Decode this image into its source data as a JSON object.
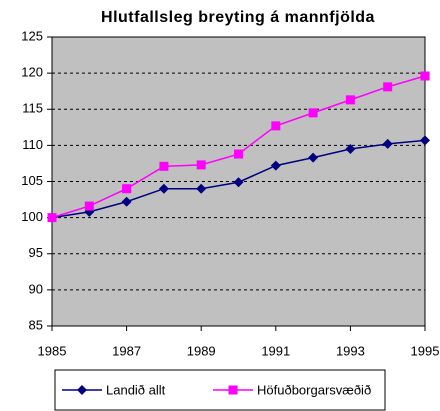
{
  "chart_data": {
    "type": "line",
    "title": "Hlutfallsleg breyting á mannfjölda",
    "x": [
      1985,
      1986,
      1987,
      1988,
      1989,
      1990,
      1991,
      1992,
      1993,
      1994,
      1995
    ],
    "xlim": [
      1985,
      1995
    ],
    "xticks": [
      1985,
      1987,
      1989,
      1991,
      1993,
      1995
    ],
    "ylim": [
      85,
      125
    ],
    "yticks": [
      85,
      90,
      95,
      100,
      105,
      110,
      115,
      120,
      125
    ],
    "grid": true,
    "legend": "bottom",
    "series": [
      {
        "name": "Landið allt",
        "color": "#000080",
        "marker": "diamond",
        "values": [
          100,
          100.8,
          102.2,
          104,
          104,
          104.9,
          107.2,
          108.3,
          109.5,
          110.2,
          110.7
        ]
      },
      {
        "name": "Höfuðborgarsvæðið",
        "color": "#ff00ff",
        "marker": "square",
        "values": [
          100,
          101.6,
          104,
          107.1,
          107.3,
          108.8,
          112.7,
          114.5,
          116.3,
          118.1,
          119.6
        ]
      }
    ]
  }
}
